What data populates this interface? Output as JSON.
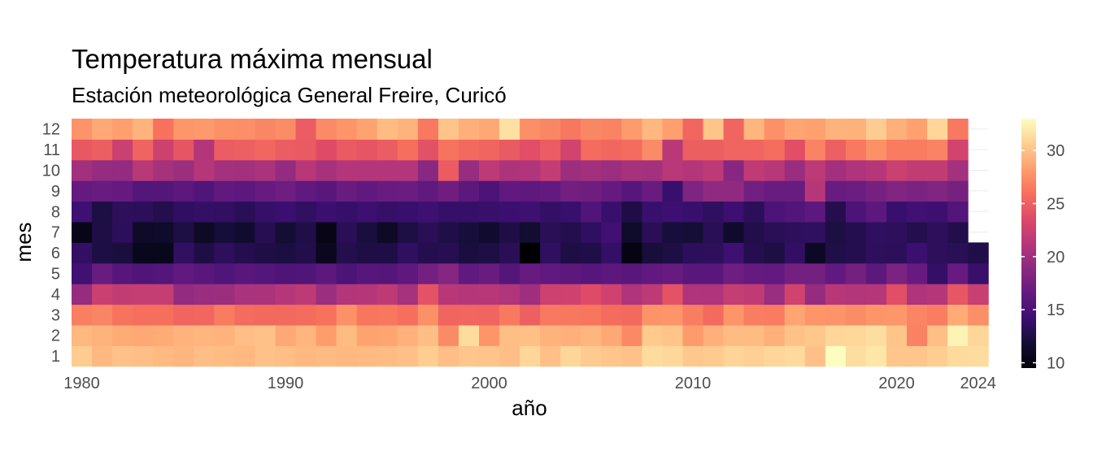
{
  "chart_data": {
    "type": "heatmap",
    "title": "Temperatura máxima mensual",
    "subtitle": "Estación meteorológica General Freire, Curicó",
    "xlabel": "año",
    "ylabel": "mes",
    "x_ticks": [
      "1980",
      "1990",
      "2000",
      "2010",
      "2020",
      "2024"
    ],
    "y_ticks": [
      "1",
      "2",
      "3",
      "4",
      "5",
      "6",
      "7",
      "8",
      "9",
      "10",
      "11",
      "12"
    ],
    "colorbar_ticks": [
      "10",
      "15",
      "20",
      "25",
      "30"
    ],
    "value_range": [
      9.5,
      33
    ],
    "colormap": "magma",
    "grid": true,
    "legend_position": "right",
    "x_range": [
      1980,
      2024
    ],
    "last_data": {
      "year": 2024,
      "months": 6
    },
    "years": [
      1980,
      1981,
      1982,
      1983,
      1984,
      1985,
      1986,
      1987,
      1988,
      1989,
      1990,
      1991,
      1992,
      1993,
      1994,
      1995,
      1996,
      1997,
      1998,
      1999,
      2000,
      2001,
      2002,
      2003,
      2004,
      2005,
      2006,
      2007,
      2008,
      2009,
      2010,
      2011,
      2012,
      2013,
      2014,
      2015,
      2016,
      2017,
      2018,
      2019,
      2020,
      2021,
      2022,
      2023,
      2024
    ],
    "months": [
      1,
      2,
      3,
      4,
      5,
      6,
      7,
      8,
      9,
      10,
      11,
      12
    ],
    "values": [
      [
        30.5,
        29.5,
        30,
        29.8,
        29.6,
        29.4,
        29.8,
        29.7,
        29.5,
        30,
        29.8,
        29.5,
        29.7,
        29.5,
        29.6,
        29.7,
        29.9,
        30.6,
        29.8,
        30.2,
        30.1,
        29.8,
        31,
        29.9,
        31,
        30.4,
        30.2,
        30,
        31.3,
        31.1,
        30.3,
        30.4,
        30.9,
        30.7,
        31,
        31.2,
        29.9,
        33,
        31.4,
        31.8,
        30.2,
        30.2,
        30.6,
        31.2,
        31.3
      ],
      [
        29.5,
        29.3,
        28.9,
        28.8,
        28.9,
        29.3,
        29.4,
        29.3,
        29.8,
        30,
        28.8,
        29.4,
        28.2,
        29.7,
        28.5,
        28.6,
        29.2,
        29.8,
        27.3,
        31.3,
        27.8,
        29.8,
        29.9,
        29.3,
        29.1,
        29.4,
        28.8,
        27.2,
        30.4,
        30.1,
        28.1,
        29.1,
        29.7,
        29.7,
        29.1,
        30,
        30.3,
        31,
        31.1,
        31.4,
        30.1,
        26.8,
        29.8,
        32.5,
        31
      ],
      [
        26.7,
        27,
        26.1,
        25.9,
        25.9,
        25.3,
        25.4,
        26.5,
        25.7,
        25.5,
        25.5,
        25.7,
        26,
        27.6,
        26.2,
        26.3,
        25.9,
        27.6,
        25.3,
        25.4,
        25.3,
        26.4,
        25,
        26.4,
        26.3,
        26.2,
        25.7,
        25.5,
        27.7,
        27.8,
        26.6,
        25.6,
        27.8,
        26.6,
        26.5,
        28.6,
        27.8,
        27.7,
        27.4,
        27.8,
        27.9,
        27,
        26.6,
        28.9,
        27.5
      ],
      [
        19.4,
        22.4,
        21.9,
        22.1,
        22.1,
        19.3,
        19.6,
        19.8,
        20.5,
        20.6,
        21.2,
        21.7,
        19.7,
        21,
        21.2,
        21.7,
        20.3,
        24.2,
        21.3,
        21.2,
        21.3,
        20.9,
        19.9,
        22.5,
        22.7,
        23.7,
        22.7,
        20.8,
        21.6,
        24.2,
        20.8,
        20.8,
        22.1,
        21.8,
        19.6,
        22.8,
        19.4,
        21.3,
        21.1,
        21.2,
        23.9,
        20.8,
        21.2,
        24.4,
        22.3
      ],
      [
        14.5,
        16.8,
        15.8,
        15.4,
        15.6,
        16.3,
        15.9,
        15.4,
        15.9,
        15.6,
        15.3,
        15.4,
        16.1,
        15.2,
        15.8,
        15.7,
        16.2,
        17.5,
        18.5,
        16.4,
        16.8,
        15.7,
        16.7,
        16.3,
        16.1,
        15.8,
        16.1,
        15.9,
        16.4,
        16.7,
        15.9,
        15.9,
        17.1,
        16.6,
        16.5,
        17.5,
        17.5,
        16.4,
        17.5,
        16.1,
        17.9,
        16.7,
        13.8,
        16.7,
        14
      ],
      [
        13.7,
        12.4,
        12.2,
        10.6,
        10.6,
        13.6,
        12.5,
        13.4,
        12.8,
        12.5,
        12.3,
        12.7,
        10.7,
        12.8,
        12.5,
        12.5,
        13.5,
        12.9,
        13,
        12.2,
        12.4,
        13.2,
        9.5,
        13.5,
        12.5,
        12.6,
        13.8,
        10.2,
        12.1,
        12.4,
        13.3,
        13.4,
        14.4,
        12.8,
        12.4,
        13.7,
        11,
        12.6,
        12.9,
        13.4,
        13.3,
        14.2,
        13.4,
        13.1,
        12.6
      ],
      [
        10.4,
        12.5,
        13.3,
        11.2,
        11.3,
        12.4,
        11.1,
        12,
        11.5,
        13,
        11.8,
        12.6,
        10.4,
        13.2,
        12.2,
        11.1,
        12.4,
        13.2,
        12.6,
        12.1,
        11.5,
        12.5,
        11.6,
        13.2,
        12.8,
        13.5,
        14.5,
        11.3,
        13.2,
        12.1,
        11.9,
        13.1,
        11.4,
        12.7,
        13.2,
        13.4,
        13.5,
        12.4,
        12.9,
        13.5,
        13.4,
        12.8,
        13.4,
        12.7,
        null
      ],
      [
        14.4,
        12.4,
        13.4,
        13.3,
        12.8,
        13.5,
        13.8,
        13.7,
        13.1,
        13.9,
        14.2,
        13.6,
        14.2,
        13.9,
        14.3,
        13.9,
        14.1,
        14.4,
        13.9,
        13.9,
        14,
        14.2,
        14.4,
        13.8,
        14.1,
        15.4,
        14.1,
        12.5,
        14.1,
        14.3,
        14.1,
        13.5,
        14.3,
        13.3,
        15.2,
        15.5,
        16.1,
        12.8,
        15.2,
        16.1,
        14.1,
        14.5,
        14.3,
        15.5,
        null
      ],
      [
        16.6,
        16.8,
        16.6,
        15.6,
        15.7,
        16.1,
        15.4,
        16.4,
        16.1,
        16.7,
        17.1,
        16.3,
        15.9,
        16.8,
        16.4,
        16.8,
        16.9,
        16.3,
        17.2,
        16.1,
        15.2,
        16.4,
        16.2,
        16.5,
        17.4,
        17.2,
        16.6,
        15.8,
        16.8,
        14.1,
        18.1,
        19.1,
        19.1,
        17.3,
        16.8,
        16.8,
        21.2,
        16.8,
        17,
        17.6,
        18.2,
        17.9,
        18.2,
        17.6,
        null
      ],
      [
        20.1,
        19.4,
        19.3,
        21.4,
        20.4,
        19.8,
        21.2,
        20.2,
        20.1,
        20.6,
        19.3,
        21.3,
        20.4,
        21.1,
        21.1,
        21.1,
        21.1,
        18.7,
        24.7,
        19.5,
        21.6,
        20.7,
        20.9,
        22,
        19.8,
        20.1,
        19.7,
        20.4,
        20.2,
        21.4,
        21.1,
        21.6,
        18.6,
        21.8,
        21.3,
        19.6,
        21.7,
        20.1,
        20.8,
        21.2,
        22.4,
        21.9,
        21.9,
        20.2,
        null
      ],
      [
        24.5,
        24.9,
        22.4,
        25.2,
        22.6,
        24.3,
        21.1,
        24.8,
        25,
        25.4,
        24.8,
        24.6,
        23.7,
        24.6,
        24.3,
        24.8,
        25.9,
        24.1,
        26.1,
        25.5,
        25.3,
        24.6,
        23.9,
        24.8,
        22.9,
        25.7,
        25.4,
        25.7,
        27.3,
        21.4,
        24.9,
        24.9,
        25.3,
        25.3,
        25.8,
        23.9,
        26.9,
        25,
        26.4,
        27.6,
        26.5,
        26.5,
        26.9,
        22.9,
        null
      ],
      [
        27.7,
        28.8,
        28.3,
        29.3,
        26,
        27.9,
        28,
        27.6,
        27.5,
        27.1,
        27.4,
        24.8,
        27.3,
        27.8,
        28.5,
        29.7,
        29.3,
        26.4,
        30.1,
        29.1,
        28.8,
        31.5,
        27.5,
        27.1,
        26.3,
        27.1,
        26.9,
        28.1,
        29.5,
        28.3,
        25.4,
        30.1,
        25.3,
        29.4,
        27.6,
        28.6,
        28.4,
        29.3,
        29.2,
        30.5,
        29.1,
        28.4,
        31,
        26.4,
        null
      ]
    ]
  }
}
